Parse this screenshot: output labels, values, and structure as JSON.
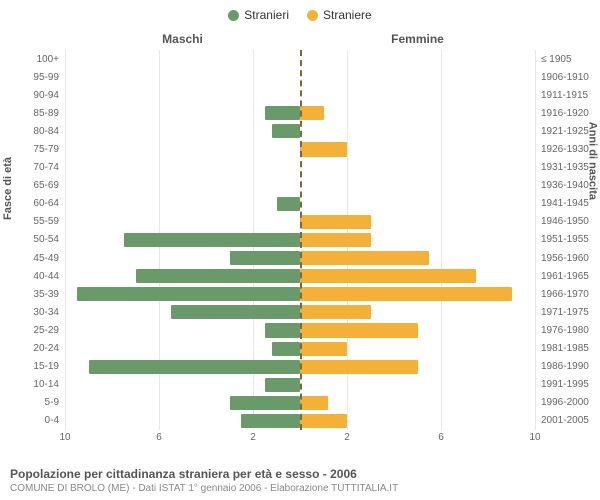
{
  "legend": {
    "male": {
      "label": "Stranieri",
      "color": "#6b9a6a"
    },
    "female": {
      "label": "Straniere",
      "color": "#f3b13a"
    }
  },
  "side_titles": {
    "left": "Maschi",
    "right": "Femmine"
  },
  "axis_titles": {
    "left": "Fasce di età",
    "right": "Anni di nascita"
  },
  "chart": {
    "type": "population-pyramid",
    "max_value": 10,
    "x_ticks_left": [
      10,
      6,
      2
    ],
    "x_ticks_right": [
      2,
      6,
      10
    ],
    "background_color": "#ffffff",
    "grid_color": "#e8e8e8",
    "center_line_color": "#7a6a3a",
    "male_color": "#6b9a6a",
    "female_color": "#f3b13a",
    "label_fontsize": 10,
    "rows": [
      {
        "age": "100+",
        "birth": "≤ 1905",
        "m": 0,
        "f": 0
      },
      {
        "age": "95-99",
        "birth": "1906-1910",
        "m": 0,
        "f": 0
      },
      {
        "age": "90-94",
        "birth": "1911-1915",
        "m": 0,
        "f": 0
      },
      {
        "age": "85-89",
        "birth": "1916-1920",
        "m": 1.5,
        "f": 1
      },
      {
        "age": "80-84",
        "birth": "1921-1925",
        "m": 1.2,
        "f": 0
      },
      {
        "age": "75-79",
        "birth": "1926-1930",
        "m": 0,
        "f": 2
      },
      {
        "age": "70-74",
        "birth": "1931-1935",
        "m": 0,
        "f": 0
      },
      {
        "age": "65-69",
        "birth": "1936-1940",
        "m": 0,
        "f": 0
      },
      {
        "age": "60-64",
        "birth": "1941-1945",
        "m": 1,
        "f": 0
      },
      {
        "age": "55-59",
        "birth": "1946-1950",
        "m": 0,
        "f": 3
      },
      {
        "age": "50-54",
        "birth": "1951-1955",
        "m": 7.5,
        "f": 3
      },
      {
        "age": "45-49",
        "birth": "1956-1960",
        "m": 3,
        "f": 5.5
      },
      {
        "age": "40-44",
        "birth": "1961-1965",
        "m": 7,
        "f": 7.5
      },
      {
        "age": "35-39",
        "birth": "1966-1970",
        "m": 9.5,
        "f": 9
      },
      {
        "age": "30-34",
        "birth": "1971-1975",
        "m": 5.5,
        "f": 3
      },
      {
        "age": "25-29",
        "birth": "1976-1980",
        "m": 1.5,
        "f": 5
      },
      {
        "age": "20-24",
        "birth": "1981-1985",
        "m": 1.2,
        "f": 2
      },
      {
        "age": "15-19",
        "birth": "1986-1990",
        "m": 9,
        "f": 5
      },
      {
        "age": "10-14",
        "birth": "1991-1995",
        "m": 1.5,
        "f": 0
      },
      {
        "age": "5-9",
        "birth": "1996-2000",
        "m": 3,
        "f": 1.2
      },
      {
        "age": "0-4",
        "birth": "2001-2005",
        "m": 2.5,
        "f": 2
      }
    ]
  },
  "footer": {
    "title": "Popolazione per cittadinanza straniera per età e sesso - 2006",
    "subtitle": "COMUNE DI BROLO (ME) - Dati ISTAT 1° gennaio 2006 - Elaborazione TUTTITALIA.IT"
  }
}
